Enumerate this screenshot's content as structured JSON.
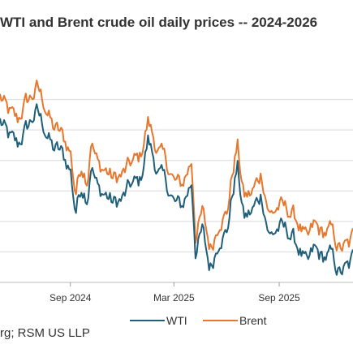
{
  "chart_data": {
    "type": "line",
    "title": "WTI and Brent crude oil daily prices -- 2024-2026",
    "xlabel": "",
    "ylabel": "",
    "x_tick_labels": [
      "Sep 2024",
      "Mar 2025",
      "Sep 2025"
    ],
    "x_ticks": [
      "2024-09-01",
      "2025-03-01",
      "2025-09-01"
    ],
    "x_range": [
      "2024-05-01",
      "2026-01-08"
    ],
    "ylim": [
      55,
      90
    ],
    "y_gridlines": [
      60,
      65,
      70,
      75,
      80,
      85
    ],
    "y_tick_labels_visible": false,
    "grid": true,
    "legend_position": "bottom",
    "x": [
      "2024-05-01",
      "2024-05-15",
      "2024-06-01",
      "2024-06-15",
      "2024-07-01",
      "2024-07-05",
      "2024-07-15",
      "2024-08-01",
      "2024-08-15",
      "2024-09-01",
      "2024-09-10",
      "2024-09-20",
      "2024-10-01",
      "2024-10-07",
      "2024-10-20",
      "2024-11-01",
      "2024-11-15",
      "2024-12-01",
      "2024-12-15",
      "2025-01-01",
      "2025-01-15",
      "2025-02-01",
      "2025-02-15",
      "2025-03-01",
      "2025-03-15",
      "2025-04-01",
      "2025-04-08",
      "2025-04-20",
      "2025-05-01",
      "2025-05-05",
      "2025-05-20",
      "2025-06-01",
      "2025-06-13",
      "2025-06-20",
      "2025-07-01",
      "2025-07-15",
      "2025-08-01",
      "2025-08-15",
      "2025-09-01",
      "2025-09-15",
      "2025-10-01",
      "2025-10-20",
      "2025-11-01",
      "2025-11-15",
      "2025-12-01",
      "2025-12-15",
      "2026-01-01",
      "2026-01-08"
    ],
    "series": [
      {
        "name": "WTI",
        "color": "#1f5f7a",
        "values": [
          81.5,
          79.0,
          77.5,
          80.0,
          82.5,
          83.0,
          81.0,
          77.0,
          76.5,
          73.5,
          66.5,
          71.0,
          69.0,
          74.5,
          70.0,
          69.5,
          68.0,
          68.5,
          71.0,
          71.5,
          78.5,
          73.0,
          71.5,
          68.0,
          67.5,
          71.5,
          60.0,
          63.5,
          58.0,
          57.5,
          62.5,
          63.0,
          70.5,
          74.0,
          65.5,
          66.5,
          69.5,
          62.5,
          64.0,
          63.5,
          61.5,
          57.5,
          60.5,
          59.0,
          59.5,
          56.5,
          57.5,
          59.0
        ]
      },
      {
        "name": "Brent",
        "color": "#e8772e",
        "values": [
          85.5,
          83.0,
          81.5,
          84.5,
          86.0,
          87.0,
          85.0,
          80.5,
          79.5,
          76.5,
          69.5,
          74.5,
          72.0,
          78.5,
          74.0,
          73.5,
          72.0,
          72.5,
          74.5,
          75.5,
          81.5,
          76.5,
          75.0,
          71.5,
          71.0,
          75.0,
          62.5,
          66.5,
          61.5,
          60.5,
          65.5,
          66.0,
          74.0,
          77.5,
          69.0,
          69.5,
          73.0,
          66.0,
          67.5,
          67.0,
          65.5,
          61.5,
          64.5,
          63.0,
          63.5,
          60.5,
          61.0,
          62.5
        ]
      }
    ]
  },
  "legend": {
    "wti_label": "WTI",
    "brent_label": "Brent"
  },
  "source_text": "rg; RSM US LLP",
  "colors": {
    "wti": "#1f5f7a",
    "brent": "#e8772e",
    "grid": "#d9d9d9"
  }
}
